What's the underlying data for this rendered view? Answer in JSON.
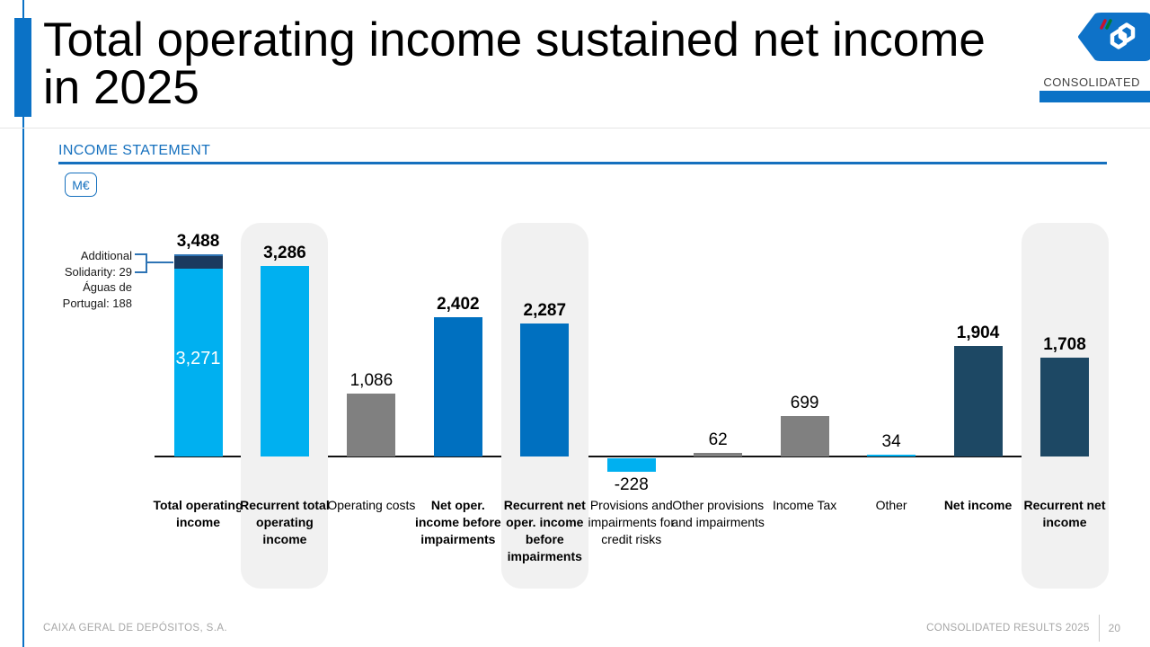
{
  "header": {
    "title_line1": "Total operating income sustained net income",
    "title_line2": "in 2025",
    "badge_label": "CONSOLIDATED",
    "logo": "cgd-logo"
  },
  "section": {
    "heading": "INCOME STATEMENT",
    "unit_label": "M€"
  },
  "annotation": {
    "lines": [
      "Additional",
      "Solidarity: 29",
      "Águas de",
      "Portugal: 188"
    ],
    "points_to": "non-recurring top segment of Total operating income bar"
  },
  "colors": {
    "accent_blue": "#0B72C6",
    "heading_blue": "#1570BE",
    "light_blue": "#00B0F0",
    "mid_blue": "#0070C0",
    "navy": "#1D4864",
    "navy_cap": "#1B3A5E",
    "gray": "#808080",
    "highlight_bg": "#F1F1F1",
    "connector_blue": "#2E74B5",
    "flag_red": "#C8102E",
    "flag_green": "#007A33",
    "footer_gray": "#A6A6A6"
  },
  "chart_data": {
    "type": "bar",
    "title": "Income statement waterfall-style bar chart",
    "unit": "M€",
    "ylim": [
      -300,
      3600
    ],
    "grid": false,
    "legend": "none",
    "bars": [
      {
        "label": "Total operating income",
        "value": 3488,
        "display_value": "3,488",
        "color": "light_blue",
        "bold": true,
        "highlight": false,
        "segments": [
          {
            "name": "recurrent portion",
            "value": 3271,
            "color": "light_blue",
            "inner_label": "3,271"
          },
          {
            "name": "non-recurring portion (Additional Solidarity 29 + Águas de Portugal 188)",
            "value": 217,
            "color": "navy_cap"
          }
        ]
      },
      {
        "label": "Recurrent total operating income",
        "value": 3286,
        "display_value": "3,286",
        "color": "light_blue",
        "bold": true,
        "highlight": true
      },
      {
        "label": "Operating costs",
        "value": 1086,
        "display_value": "1,086",
        "color": "gray",
        "bold": false,
        "highlight": false
      },
      {
        "label": "Net oper. income before impairments",
        "value": 2402,
        "display_value": "2,402",
        "color": "mid_blue",
        "bold": true,
        "highlight": false
      },
      {
        "label": "Recurrent net oper. income before impairments",
        "value": 2287,
        "display_value": "2,287",
        "color": "mid_blue",
        "bold": true,
        "highlight": true
      },
      {
        "label": "Provisions and impairments for credit risks",
        "value": -228,
        "display_value": "-228",
        "color": "light_blue",
        "bold": false,
        "highlight": false
      },
      {
        "label": "Other provisions and impairments",
        "value": 62,
        "display_value": "62",
        "color": "gray",
        "bold": false,
        "highlight": false
      },
      {
        "label": "Income Tax",
        "value": 699,
        "display_value": "699",
        "color": "gray",
        "bold": false,
        "highlight": false
      },
      {
        "label": "Other",
        "value": 34,
        "display_value": "34",
        "color": "light_blue",
        "bold": false,
        "highlight": false
      },
      {
        "label": "Net income",
        "value": 1904,
        "display_value": "1,904",
        "color": "navy",
        "bold": true,
        "highlight": false
      },
      {
        "label": "Recurrent net income",
        "value": 1708,
        "display_value": "1,708",
        "color": "navy",
        "bold": true,
        "highlight": true
      }
    ]
  },
  "footer": {
    "company": "CAIXA GERAL DE DEPÓSITOS, S.A.",
    "report": "CONSOLIDATED RESULTS 2025",
    "page_number": "20"
  }
}
